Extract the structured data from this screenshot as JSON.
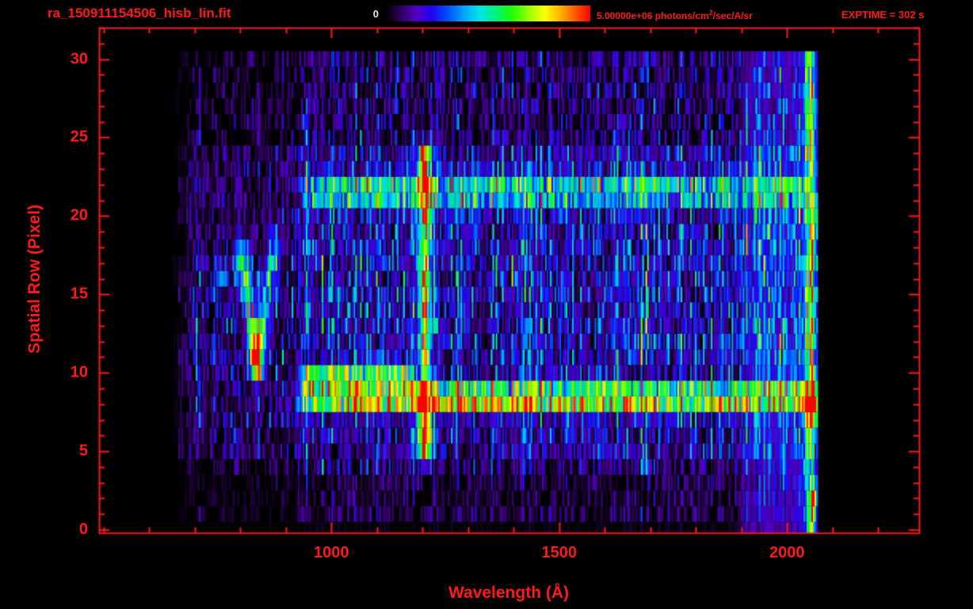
{
  "accent_color": "#ff1a1a",
  "header": {
    "title": "ra_150911154506_hisb_lin.fit",
    "colorbar_min": "0",
    "colorbar_max_prefix": "5.00000e+06 photons/cm",
    "colorbar_max_sup": "2",
    "colorbar_max_suffix": "/sec/A/sr",
    "exptime": "EXPTIME = 302 s"
  },
  "chart_data": {
    "type": "heatmap",
    "title": "ra_150911154506_hisb_lin.fit",
    "xlabel": "Wavelength (Å)",
    "ylabel": "Spatial Row (Pixel)",
    "xlim": [
      490,
      2290
    ],
    "ylim": [
      -0.2,
      32
    ],
    "x_ticks": [
      1000,
      1500,
      2000
    ],
    "x_minor_step": 100,
    "y_ticks": [
      0,
      5,
      10,
      15,
      20,
      25,
      30
    ],
    "y_minor_step": 1,
    "value_min": 0,
    "value_max": 5000000,
    "value_units": "photons/cm2/sec/A/sr",
    "exptime_seconds": 302,
    "data_extent": {
      "wavelength_A": [
        650,
        2065
      ],
      "spatial_rows": [
        0,
        30
      ]
    },
    "colormap": [
      {
        "pos": 0.0,
        "color": "#000000"
      },
      {
        "pos": 0.07,
        "color": "#2b0054"
      },
      {
        "pos": 0.15,
        "color": "#5500c8"
      },
      {
        "pos": 0.22,
        "color": "#2200ee"
      },
      {
        "pos": 0.3,
        "color": "#004cff"
      },
      {
        "pos": 0.38,
        "color": "#00a4ff"
      },
      {
        "pos": 0.46,
        "color": "#00e6e6"
      },
      {
        "pos": 0.54,
        "color": "#00f07a"
      },
      {
        "pos": 0.62,
        "color": "#22ff00"
      },
      {
        "pos": 0.7,
        "color": "#9dff00"
      },
      {
        "pos": 0.78,
        "color": "#ffff00"
      },
      {
        "pos": 0.86,
        "color": "#ffa800"
      },
      {
        "pos": 0.93,
        "color": "#ff5500"
      },
      {
        "pos": 1.0,
        "color": "#ff0000"
      }
    ],
    "features": [
      {
        "name": "bright-continuum-band",
        "kind": "hband",
        "row": 8.4,
        "row_sigma": 0.55,
        "wl_range": [
          915,
          2065
        ],
        "intensity": 0.62,
        "peaks": [
          {
            "wl": 1320,
            "wl_sigma": 260,
            "boost": 0.16
          },
          {
            "wl": 2050,
            "wl_sigma": 30,
            "boost": 0.18
          }
        ]
      },
      {
        "name": "secondary-continuum-band",
        "kind": "hband",
        "row": 9.7,
        "row_sigma": 0.5,
        "wl_range": [
          925,
          1190
        ],
        "intensity": 0.5,
        "peaks": []
      },
      {
        "name": "lyman-alpha-emission-line",
        "kind": "vline",
        "wl": 1205,
        "wl_sigma": 7,
        "row_range": [
          4.8,
          24.3
        ],
        "intensity": 0.5,
        "wing_sigma": 16,
        "wing_intensity": 0.18
      },
      {
        "name": "upper-spectral-band",
        "kind": "hband",
        "row": 21.6,
        "row_sigma": 0.6,
        "wl_range": [
          930,
          2052
        ],
        "intensity": 0.34,
        "peaks": [
          {
            "wl": 1150,
            "wl_sigma": 300,
            "boost": 0.08
          }
        ]
      },
      {
        "name": "v-shaped-feature-left-arm",
        "kind": "segment",
        "from": [
          800,
          17.5
        ],
        "to": [
          838,
          10.8
        ],
        "wl_sigma": 9,
        "row_sigma": 0.8,
        "intensity": 0.45
      },
      {
        "name": "v-shaped-feature-right-arm",
        "kind": "segment",
        "from": [
          838,
          10.8
        ],
        "to": [
          874,
          18.0
        ],
        "wl_sigma": 9,
        "row_sigma": 0.8,
        "intensity": 0.4
      },
      {
        "name": "v-vertex-blob",
        "kind": "blob",
        "wl": 838,
        "row": 11.2,
        "wl_sigma": 10,
        "row_sigma": 1.0,
        "intensity": 0.3
      },
      {
        "name": "left-cyan-spot",
        "kind": "blob",
        "wl": 757,
        "row": 16.3,
        "wl_sigma": 6,
        "row_sigma": 0.5,
        "intensity": 0.3
      },
      {
        "name": "lyman-alpha-base-blob",
        "kind": "blob",
        "wl": 1205,
        "row": 5.8,
        "wl_sigma": 12,
        "row_sigma": 1.0,
        "intensity": 0.3
      },
      {
        "name": "lyman-alpha-top-blob",
        "kind": "blob",
        "wl": 1203,
        "row": 23.5,
        "wl_sigma": 10,
        "row_sigma": 0.9,
        "intensity": 0.25
      },
      {
        "name": "red-edge-column",
        "kind": "vline",
        "wl": 2052,
        "wl_sigma": 9,
        "row_range": [
          0.5,
          30.5
        ],
        "intensity": 0.32,
        "wing_sigma": 18,
        "wing_intensity": 0.1
      },
      {
        "name": "red-edge-hotspot",
        "kind": "blob",
        "wl": 2056,
        "row": 7.9,
        "wl_sigma": 7,
        "row_sigma": 0.9,
        "intensity": 0.85
      },
      {
        "name": "bottom-right-hotspot",
        "kind": "blob",
        "wl": 2058,
        "row": 1.7,
        "wl_sigma": 5,
        "row_sigma": 0.6,
        "intensity": 0.55
      },
      {
        "name": "right-region-enhancement",
        "kind": "vband",
        "wl_range": [
          1890,
          2062
        ],
        "intensity": 0.1
      }
    ],
    "noise": {
      "seed": 20150911,
      "row_envelope": [
        [
          0,
          0.03
        ],
        [
          1,
          0.1
        ],
        [
          2,
          0.09
        ],
        [
          3,
          0.11
        ],
        [
          4,
          0.17
        ],
        [
          5,
          0.21
        ],
        [
          10,
          0.24
        ],
        [
          12,
          0.28
        ],
        [
          20,
          0.28
        ],
        [
          24,
          0.25
        ],
        [
          25,
          0.19
        ],
        [
          30,
          0.16
        ]
      ],
      "left_sparse_wl": 925,
      "left_factor_mid_rows": 0.75,
      "left_factor_outer_rows": 0.5,
      "black_fraction_inner": 0.15,
      "black_fraction_outer": 0.38,
      "column_bright_fraction": 0.05
    }
  }
}
